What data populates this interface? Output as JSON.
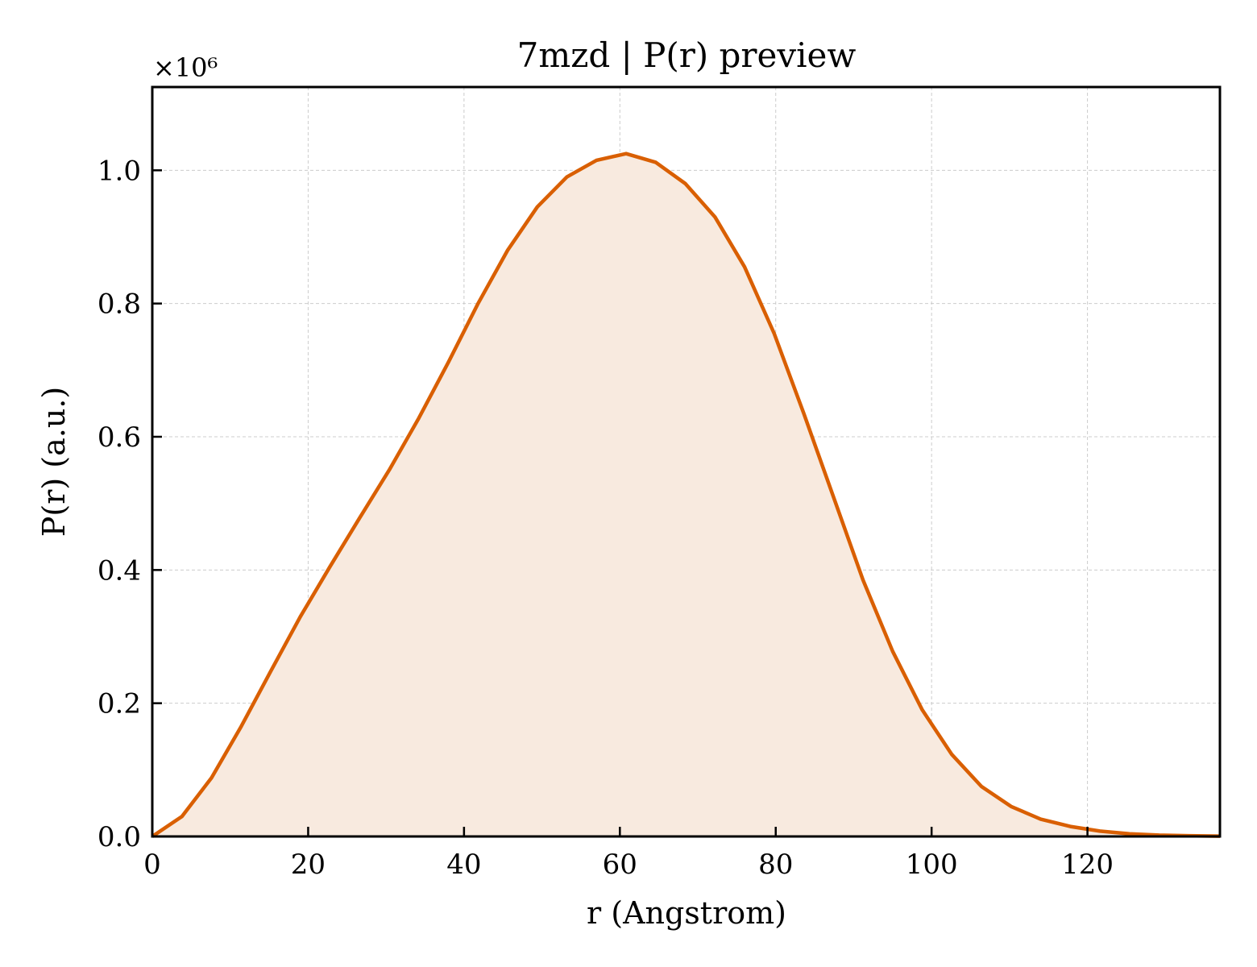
{
  "chart_data": {
    "type": "area",
    "title": "7mzd | P(r) preview",
    "xlabel": "r (Angstrom)",
    "ylabel": "P(r) (a.u.)",
    "y_offset_label": "×10⁶",
    "xlim": [
      0,
      137
    ],
    "ylim": [
      0,
      1.125
    ],
    "x_ticks": [
      0,
      20,
      40,
      60,
      80,
      100,
      120
    ],
    "x_tick_labels": [
      "0",
      "20",
      "40",
      "60",
      "80",
      "100",
      "120"
    ],
    "y_ticks": [
      0,
      0.2,
      0.4,
      0.6,
      0.8,
      1.0
    ],
    "y_tick_labels": [
      "0.0",
      "0.2",
      "0.4",
      "0.6",
      "0.8",
      "1.0"
    ],
    "grid": true,
    "colors": {
      "line": "#d95f02",
      "fill": "#f8eadf",
      "grid": "#cccccc"
    },
    "series": [
      {
        "x": [
          0,
          3.8,
          7.6,
          11.4,
          15.2,
          19,
          22.8,
          26.6,
          30.4,
          34.2,
          38,
          41.8,
          45.6,
          49.4,
          53.2,
          57,
          60.8,
          64.6,
          68.4,
          72.2,
          76,
          79.8,
          83.6,
          87.4,
          91.2,
          95,
          98.8,
          102.6,
          106.4,
          110.2,
          114,
          117.8,
          121.6,
          125.4,
          129.2,
          133,
          137
        ],
        "y": [
          0,
          0.03,
          0.088,
          0.165,
          0.248,
          0.33,
          0.405,
          0.478,
          0.55,
          0.628,
          0.712,
          0.8,
          0.88,
          0.945,
          0.99,
          1.015,
          1.025,
          1.012,
          0.98,
          0.93,
          0.855,
          0.755,
          0.635,
          0.51,
          0.385,
          0.278,
          0.19,
          0.123,
          0.075,
          0.045,
          0.026,
          0.015,
          0.008,
          0.004,
          0.002,
          0.001,
          0.0005
        ]
      }
    ]
  }
}
